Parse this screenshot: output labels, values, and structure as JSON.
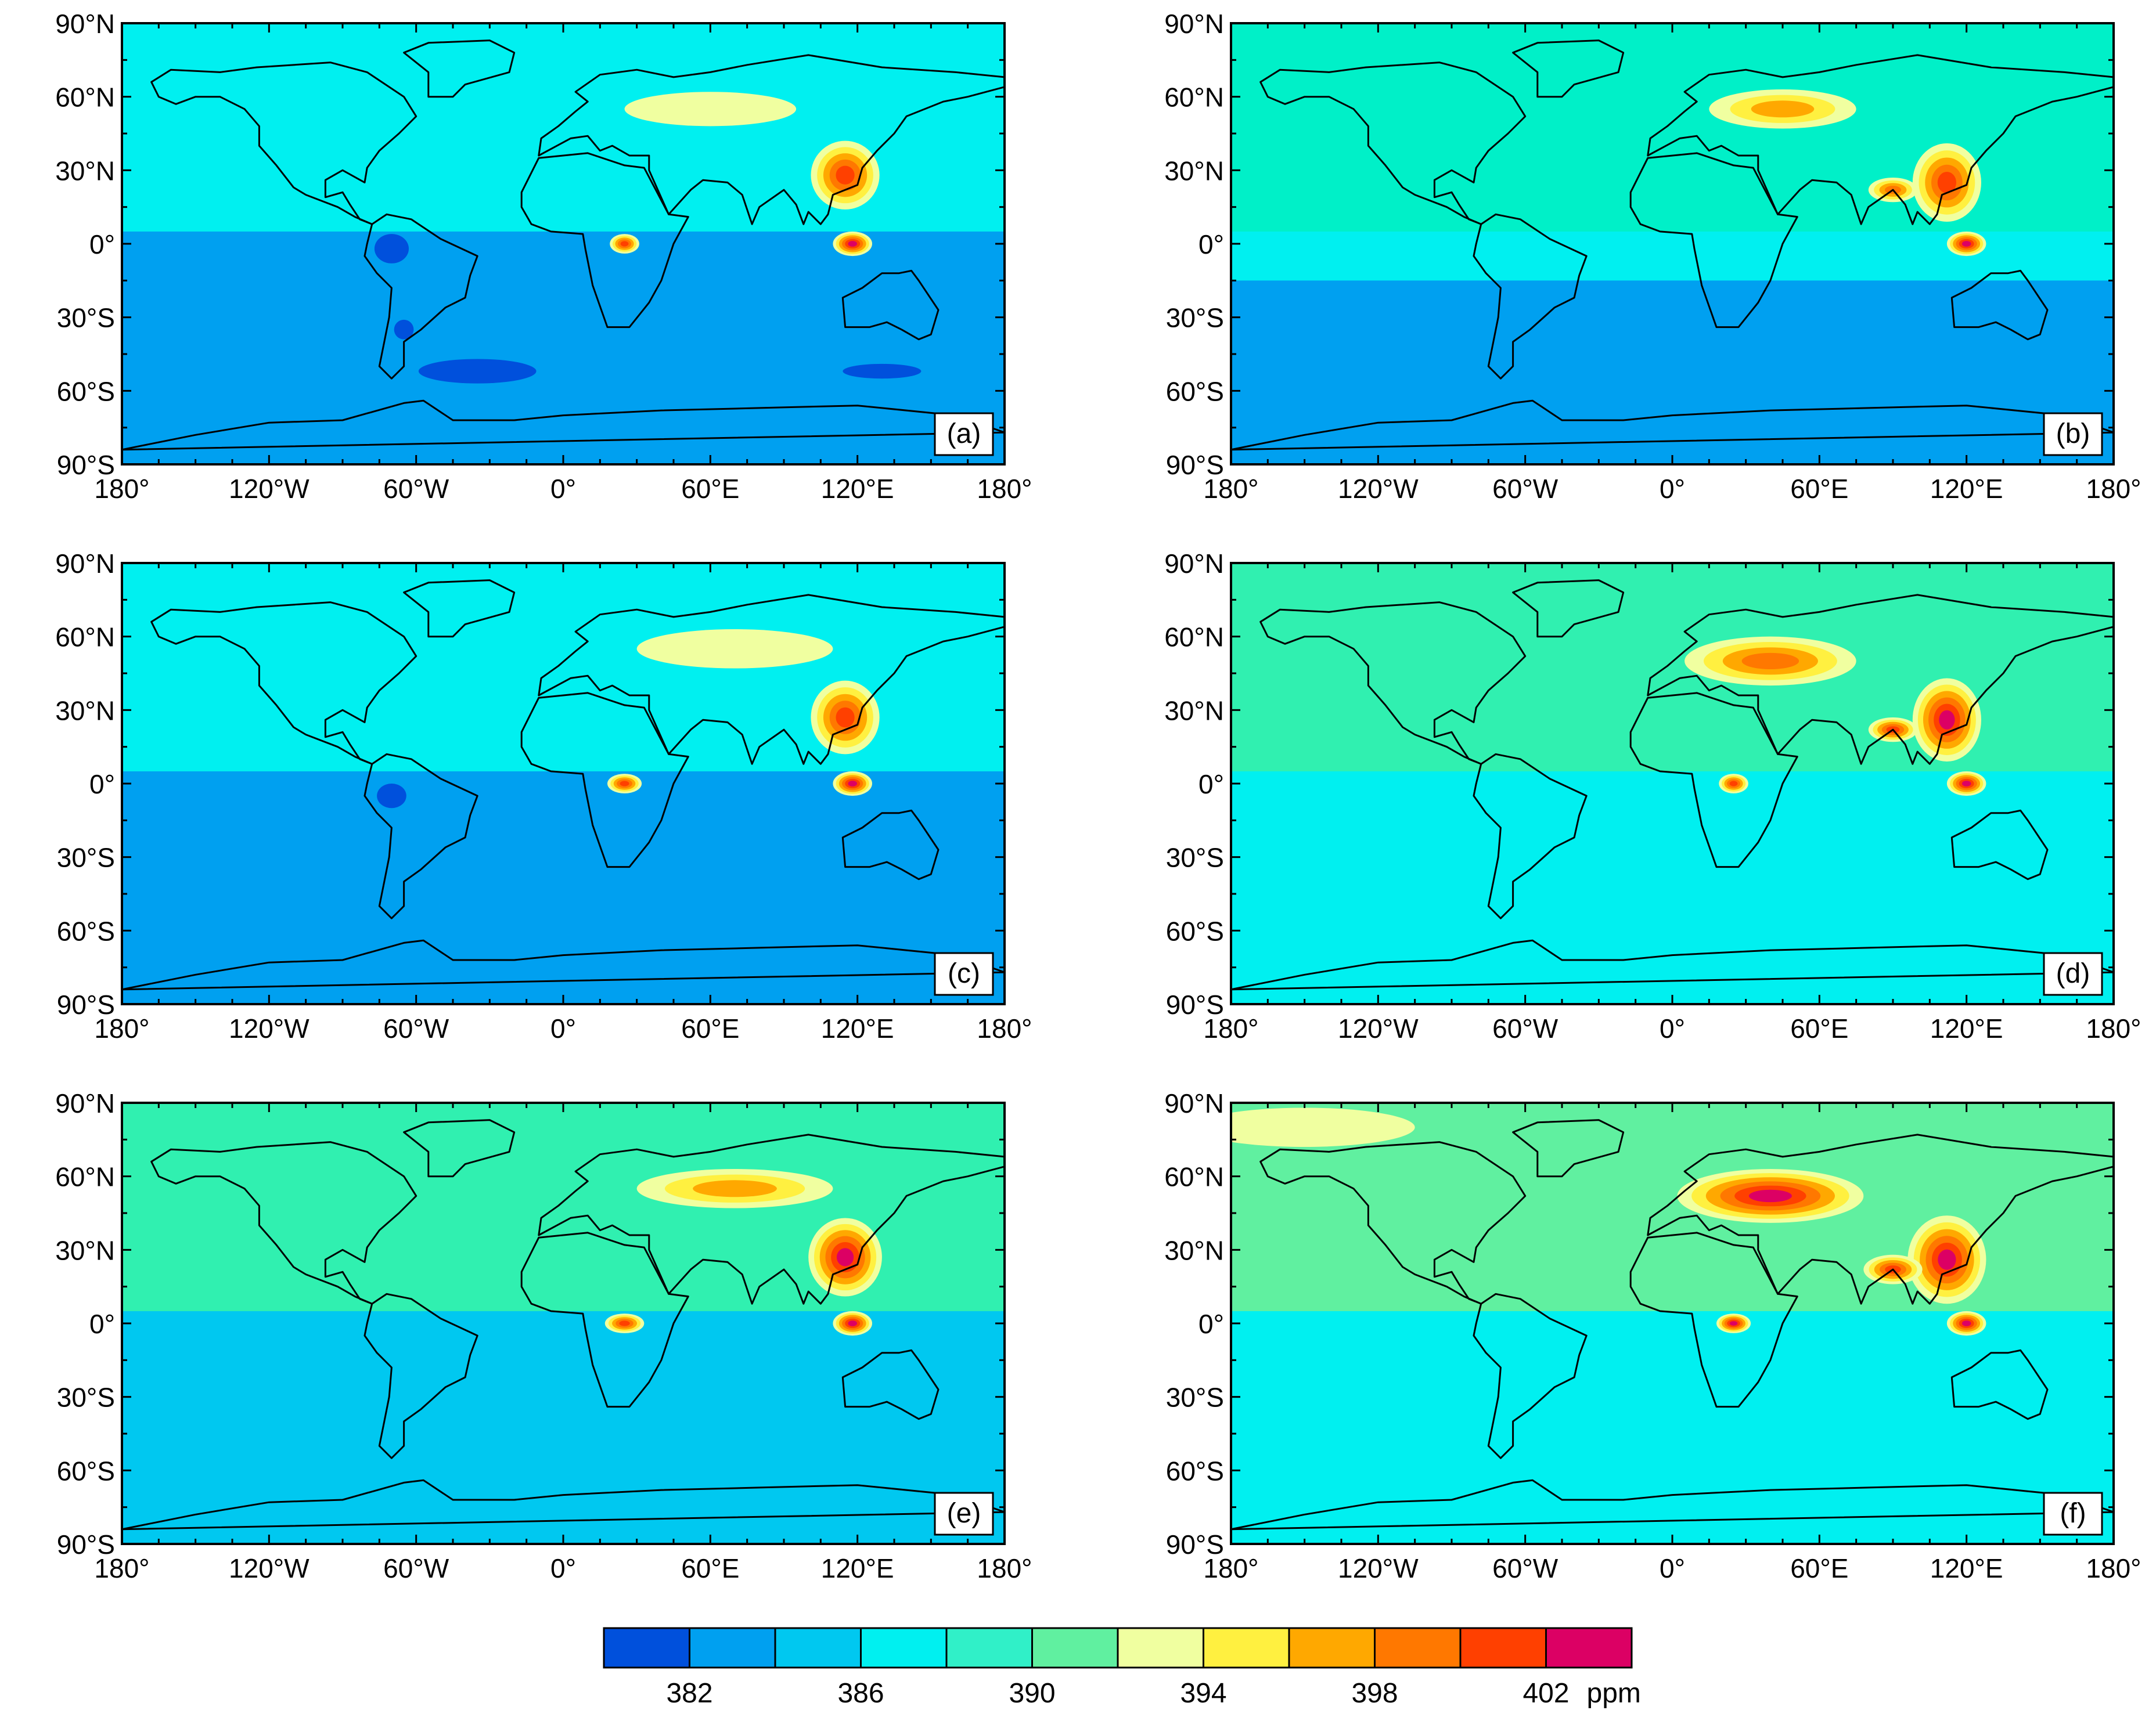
{
  "panels": [
    {
      "label": "(a)",
      "base_color": "#00A0F0",
      "sst_north": "#00F0F0",
      "sst_south": "#00A0F0",
      "hotspots": [
        {
          "lon": 115,
          "lat": 28,
          "rx": 14,
          "ry": 14,
          "level": 10
        },
        {
          "lon": 118,
          "lat": 0,
          "rx": 8,
          "ry": 5,
          "level": 11
        },
        {
          "lon": 25,
          "lat": 0,
          "rx": 6,
          "ry": 4,
          "level": 10
        },
        {
          "lon": 60,
          "lat": 55,
          "rx": 35,
          "ry": 7,
          "level": 6
        }
      ],
      "lows": [
        {
          "lon": -70,
          "lat": -2,
          "rx": 7,
          "ry": 6
        },
        {
          "lon": -35,
          "lat": -52,
          "rx": 24,
          "ry": 5
        },
        {
          "lon": 130,
          "lat": -52,
          "rx": 16,
          "ry": 3
        },
        {
          "lon": -65,
          "lat": -35,
          "rx": 4,
          "ry": 4
        }
      ]
    },
    {
      "label": "(b)",
      "base_color": "#00F0F0",
      "sst_north": "#00F0C8",
      "sst_south": "#00A0F0",
      "hotspots": [
        {
          "lon": 112,
          "lat": 25,
          "rx": 14,
          "ry": 16,
          "level": 10
        },
        {
          "lon": 120,
          "lat": 0,
          "rx": 8,
          "ry": 5,
          "level": 11
        },
        {
          "lon": 45,
          "lat": 55,
          "rx": 30,
          "ry": 8,
          "level": 8
        },
        {
          "lon": 90,
          "lat": 22,
          "rx": 10,
          "ry": 5,
          "level": 9
        }
      ],
      "lows": []
    },
    {
      "label": "(c)",
      "base_color": "#00A0F0",
      "sst_north": "#00F0F0",
      "sst_south": "#00A0F0",
      "hotspots": [
        {
          "lon": 115,
          "lat": 27,
          "rx": 14,
          "ry": 15,
          "level": 10
        },
        {
          "lon": 118,
          "lat": 0,
          "rx": 8,
          "ry": 5,
          "level": 11
        },
        {
          "lon": 25,
          "lat": 0,
          "rx": 7,
          "ry": 4,
          "level": 10
        },
        {
          "lon": 70,
          "lat": 55,
          "rx": 40,
          "ry": 8,
          "level": 6
        }
      ],
      "lows": [
        {
          "lon": -70,
          "lat": -5,
          "rx": 6,
          "ry": 5
        }
      ]
    },
    {
      "label": "(d)",
      "base_color": "#00F0F0",
      "sst_north": "#30F0B0",
      "sst_south": "#00F0F0",
      "hotspots": [
        {
          "lon": 112,
          "lat": 26,
          "rx": 14,
          "ry": 17,
          "level": 11
        },
        {
          "lon": 120,
          "lat": 0,
          "rx": 8,
          "ry": 5,
          "level": 11
        },
        {
          "lon": 40,
          "lat": 50,
          "rx": 35,
          "ry": 10,
          "level": 9
        },
        {
          "lon": 90,
          "lat": 22,
          "rx": 10,
          "ry": 5,
          "level": 10
        },
        {
          "lon": 25,
          "lat": 0,
          "rx": 6,
          "ry": 4,
          "level": 10
        }
      ],
      "lows": []
    },
    {
      "label": "(e)",
      "base_color": "#00C8F0",
      "sst_north": "#30F0B0",
      "sst_south": "#00C8F0",
      "hotspots": [
        {
          "lon": 115,
          "lat": 27,
          "rx": 15,
          "ry": 16,
          "level": 11
        },
        {
          "lon": 118,
          "lat": 0,
          "rx": 8,
          "ry": 5,
          "level": 11
        },
        {
          "lon": 25,
          "lat": 0,
          "rx": 8,
          "ry": 4,
          "level": 10
        },
        {
          "lon": 70,
          "lat": 55,
          "rx": 40,
          "ry": 8,
          "level": 8
        }
      ],
      "lows": []
    },
    {
      "label": "(f)",
      "base_color": "#00F0F0",
      "sst_north": "#60F0A0",
      "sst_south": "#00F0F0",
      "hotspots": [
        {
          "lon": 112,
          "lat": 26,
          "rx": 16,
          "ry": 18,
          "level": 11
        },
        {
          "lon": 120,
          "lat": 0,
          "rx": 8,
          "ry": 5,
          "level": 11
        },
        {
          "lon": 40,
          "lat": 52,
          "rx": 38,
          "ry": 11,
          "level": 11
        },
        {
          "lon": 90,
          "lat": 22,
          "rx": 12,
          "ry": 6,
          "level": 10
        },
        {
          "lon": 25,
          "lat": 0,
          "rx": 7,
          "ry": 4,
          "level": 11
        },
        {
          "lon": -150,
          "lat": 80,
          "rx": 45,
          "ry": 8,
          "level": 6
        }
      ],
      "lows": []
    }
  ],
  "axes": {
    "lat_labels": [
      "90°N",
      "60°N",
      "30°N",
      "0°",
      "30°S",
      "60°S",
      "90°S"
    ],
    "lat_values": [
      90,
      60,
      30,
      0,
      -30,
      -60,
      -90
    ],
    "lon_labels": [
      "180°",
      "120°W",
      "60°W",
      "0°",
      "60°E",
      "120°E",
      "180°"
    ],
    "lon_values": [
      -180,
      -120,
      -60,
      0,
      60,
      120,
      180
    ]
  },
  "colorbar": {
    "colors": [
      "#0050DC",
      "#00A0F0",
      "#00C8F0",
      "#00F0F0",
      "#30F0C8",
      "#60F0A0",
      "#F0FFA0",
      "#FFF040",
      "#FFA800",
      "#FF7800",
      "#FF4000",
      "#DC0064"
    ],
    "labels": [
      "382",
      "386",
      "390",
      "394",
      "398",
      "402"
    ],
    "label_positions": [
      1,
      3,
      5,
      7,
      9,
      11
    ],
    "unit": "ppm"
  }
}
